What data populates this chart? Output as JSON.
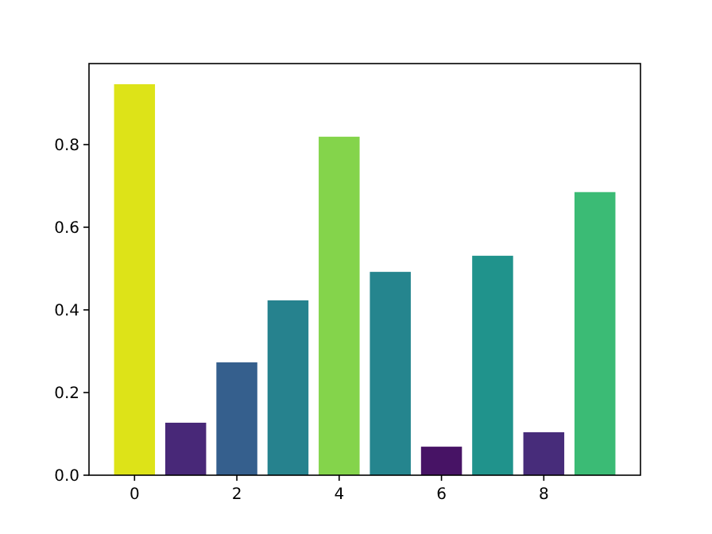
{
  "chart_data": {
    "type": "bar",
    "x": [
      0,
      1,
      2,
      3,
      4,
      5,
      6,
      7,
      8,
      9
    ],
    "values": [
      0.946,
      0.127,
      0.273,
      0.423,
      0.819,
      0.492,
      0.069,
      0.531,
      0.104,
      0.685
    ],
    "colors": [
      "#dde318",
      "#482878",
      "#355f8d",
      "#26828e",
      "#84d44b",
      "#25858e",
      "#471365",
      "#20938c",
      "#472c7a",
      "#3bbb75"
    ],
    "xlim": [
      -0.89,
      9.89
    ],
    "xticks": [
      0,
      2,
      4,
      6,
      8
    ],
    "ylim": [
      0,
      0.996
    ],
    "yticks": [
      {
        "value": 0,
        "label": "0.0"
      },
      0.2,
      0.4,
      0.6,
      0.8
    ],
    "grid": false
  }
}
